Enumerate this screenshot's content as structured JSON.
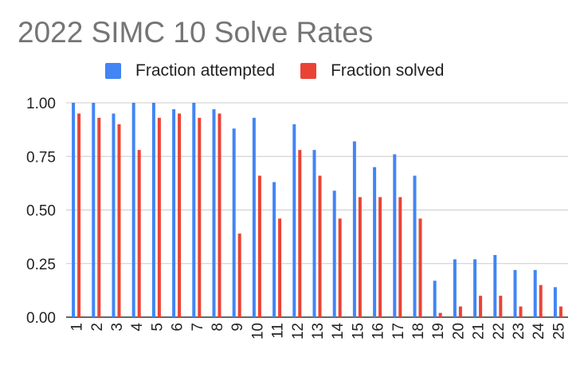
{
  "chart_data": {
    "type": "bar",
    "title": "2022 SIMC 10 Solve Rates",
    "xlabel": "",
    "ylabel": "",
    "ylim": [
      0,
      1
    ],
    "yticks": [
      "0.00",
      "0.25",
      "0.50",
      "0.75",
      "1.00"
    ],
    "grid": true,
    "legend_position": "top",
    "categories": [
      "1",
      "2",
      "3",
      "4",
      "5",
      "6",
      "7",
      "8",
      "9",
      "10",
      "11",
      "12",
      "13",
      "14",
      "15",
      "16",
      "17",
      "18",
      "19",
      "20",
      "21",
      "22",
      "23",
      "24",
      "25"
    ],
    "series": [
      {
        "name": "Fraction attempted",
        "color": "#4285F4",
        "values": [
          1.0,
          1.0,
          0.95,
          1.0,
          1.0,
          0.97,
          1.0,
          0.97,
          0.88,
          0.93,
          0.63,
          0.9,
          0.78,
          0.59,
          0.82,
          0.7,
          0.76,
          0.66,
          0.17,
          0.27,
          0.27,
          0.29,
          0.22,
          0.22,
          0.14
        ]
      },
      {
        "name": "Fraction solved",
        "color": "#EA4335",
        "values": [
          0.95,
          0.93,
          0.9,
          0.78,
          0.93,
          0.95,
          0.93,
          0.95,
          0.39,
          0.66,
          0.46,
          0.78,
          0.66,
          0.46,
          0.56,
          0.56,
          0.56,
          0.46,
          0.02,
          0.05,
          0.1,
          0.1,
          0.05,
          0.15,
          0.05
        ]
      }
    ]
  }
}
